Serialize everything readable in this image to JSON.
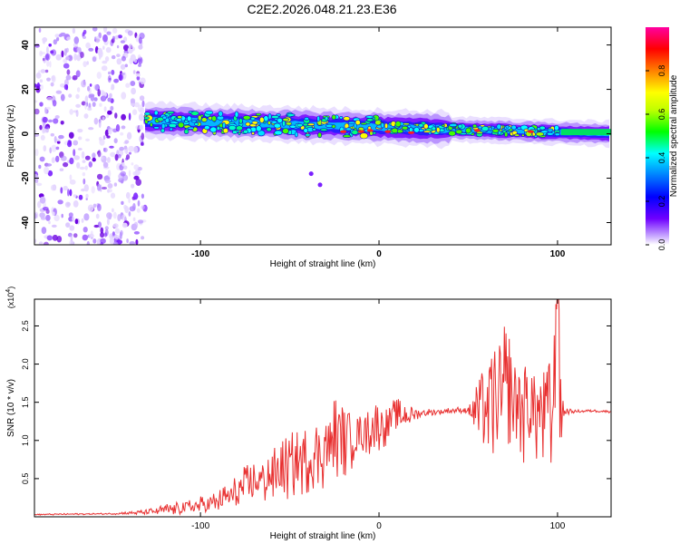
{
  "title": "C2E2.2026.048.21.23.E36",
  "chart_data": [
    {
      "type": "heatmap",
      "xlabel": "Height of straight line (km)",
      "ylabel": "Frequency (Hz)",
      "xlim": [
        -193,
        130
      ],
      "ylim": [
        -50,
        48
      ],
      "xticks": [
        -100,
        0,
        100
      ],
      "yticks": [
        -40,
        -20,
        0,
        20,
        40
      ],
      "colorbar": {
        "label": "Normalized spectral amplitude",
        "ticks": [
          0.0,
          0.2,
          0.4,
          0.6,
          0.8
        ],
        "range": [
          0,
          1
        ],
        "colormap": [
          "#ffffff",
          "#c8a8ff",
          "#6f00ff",
          "#0000ff",
          "#0080ff",
          "#00ffff",
          "#00ff00",
          "#c0ff00",
          "#ffff00",
          "#ff8000",
          "#ff0000",
          "#ff00a0"
        ]
      },
      "regions": [
        {
          "name": "scattered noise",
          "x_range": [
            -193,
            -131
          ],
          "f_range": [
            -50,
            48
          ]
        },
        {
          "name": "spectral band",
          "x_range": [
            -131,
            130
          ],
          "f_center_start": 6,
          "f_center_end": 0
        },
        {
          "name": "isolated patches",
          "points": [
            [
              -38,
              -18
            ],
            [
              -33,
              -23
            ]
          ]
        }
      ]
    },
    {
      "type": "line",
      "xlabel": "Height of straight line (km)",
      "ylabel": "SNR (10 * v/v)",
      "y_multiplier": "(x10",
      "y_multiplier_exp": "4",
      "y_multiplier_close": ")",
      "xlim": [
        -193,
        130
      ],
      "ylim": [
        0,
        2.85
      ],
      "xticks": [
        -100,
        0,
        100
      ],
      "yticks": [
        0.5,
        1.0,
        1.5,
        2.0,
        2.5
      ],
      "ytick_labels": [
        "0.5",
        "1.0",
        "1.5",
        "2.0",
        "2.5"
      ],
      "color": "#e83030",
      "series": [
        {
          "name": "SNR",
          "x": [
            -193,
            -150,
            -130,
            -120,
            -110,
            -100,
            -90,
            -80,
            -75,
            -70,
            -65,
            -60,
            -55,
            -50,
            -45,
            -40,
            -35,
            -30,
            -25,
            -20,
            -15,
            -10,
            -5,
            0,
            5,
            10,
            15,
            20,
            25,
            30,
            35,
            40,
            45,
            50,
            55,
            60,
            65,
            70,
            75,
            80,
            85,
            90,
            95,
            100,
            102,
            104,
            110,
            120,
            130
          ],
          "y": [
            0.03,
            0.04,
            0.06,
            0.09,
            0.12,
            0.15,
            0.2,
            0.3,
            0.38,
            0.45,
            0.5,
            0.55,
            0.6,
            0.65,
            0.7,
            0.75,
            0.82,
            0.9,
            1.0,
            1.05,
            1.08,
            1.1,
            1.15,
            1.2,
            1.25,
            1.3,
            1.32,
            1.35,
            1.36,
            1.37,
            1.38,
            1.39,
            1.4,
            1.4,
            1.42,
            1.45,
            1.5,
            1.55,
            1.5,
            1.45,
            1.42,
            1.4,
            1.4,
            1.4,
            1.4,
            1.38,
            1.38,
            1.39,
            1.38
          ],
          "noise_amplitude": [
            0.01,
            0.01,
            0.04,
            0.08,
            0.1,
            0.12,
            0.15,
            0.25,
            0.3,
            0.3,
            0.35,
            0.4,
            0.4,
            0.45,
            0.45,
            0.45,
            0.5,
            0.55,
            0.6,
            0.6,
            0.45,
            0.3,
            0.35,
            0.35,
            0.3,
            0.25,
            0.2,
            0.1,
            0.06,
            0.05,
            0.04,
            0.04,
            0.04,
            0.05,
            0.6,
            0.7,
            0.9,
            1.1,
            0.9,
            0.8,
            0.7,
            0.8,
            1.0,
            1.3,
            0.9,
            0.05,
            0.02,
            0.02,
            0.02
          ]
        }
      ]
    }
  ]
}
